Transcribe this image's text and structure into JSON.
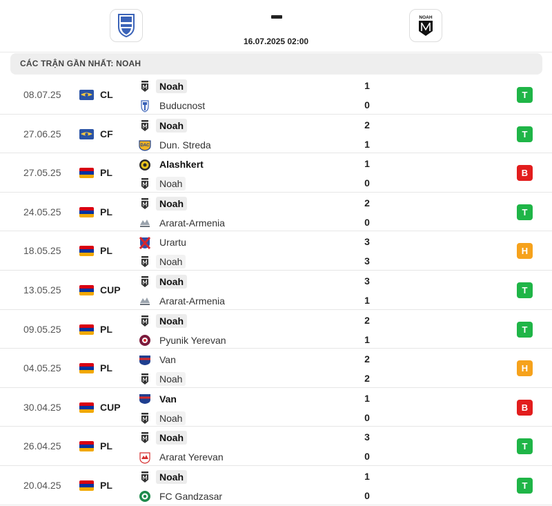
{
  "header": {
    "home_logo_icon": "buducnost-shield-icon",
    "away_logo_icon": "noah-crest-icon",
    "away_logo_text": "NOAH",
    "score": "-",
    "date": "16.07.2025 02:00"
  },
  "section_title": "CÁC TRẬN GẦN NHẤT: NOAH",
  "colors": {
    "win": "#1fb547",
    "loss": "#e21d1d",
    "draw": "#f6a21c"
  },
  "matches": [
    {
      "date": "08.07.25",
      "flag": "international",
      "comp": "CL",
      "home": {
        "name": "Noah",
        "bold": true,
        "noah": true,
        "logo": "noah-icon"
      },
      "away": {
        "name": "Buducnost",
        "bold": false,
        "noah": false,
        "logo": "buducnost-icon"
      },
      "home_score": "1",
      "away_score": "0",
      "result": "T"
    },
    {
      "date": "27.06.25",
      "flag": "international",
      "comp": "CF",
      "home": {
        "name": "Noah",
        "bold": true,
        "noah": true,
        "logo": "noah-icon"
      },
      "away": {
        "name": "Dun. Streda",
        "bold": false,
        "noah": false,
        "logo": "dunajska-streda-icon"
      },
      "home_score": "2",
      "away_score": "1",
      "result": "T"
    },
    {
      "date": "27.05.25",
      "flag": "armenia",
      "comp": "PL",
      "home": {
        "name": "Alashkert",
        "bold": true,
        "noah": false,
        "logo": "alashkert-icon"
      },
      "away": {
        "name": "Noah",
        "bold": false,
        "noah": true,
        "logo": "noah-icon"
      },
      "home_score": "1",
      "away_score": "0",
      "result": "B"
    },
    {
      "date": "24.05.25",
      "flag": "armenia",
      "comp": "PL",
      "home": {
        "name": "Noah",
        "bold": true,
        "noah": true,
        "logo": "noah-icon"
      },
      "away": {
        "name": "Ararat-Armenia",
        "bold": false,
        "noah": false,
        "logo": "ararat-armenia-icon"
      },
      "home_score": "2",
      "away_score": "0",
      "result": "T"
    },
    {
      "date": "18.05.25",
      "flag": "armenia",
      "comp": "PL",
      "home": {
        "name": "Urartu",
        "bold": false,
        "noah": false,
        "logo": "urartu-icon"
      },
      "away": {
        "name": "Noah",
        "bold": false,
        "noah": true,
        "logo": "noah-icon"
      },
      "home_score": "3",
      "away_score": "3",
      "result": "H"
    },
    {
      "date": "13.05.25",
      "flag": "armenia",
      "comp": "CUP",
      "home": {
        "name": "Noah",
        "bold": true,
        "noah": true,
        "logo": "noah-icon"
      },
      "away": {
        "name": "Ararat-Armenia",
        "bold": false,
        "noah": false,
        "logo": "ararat-armenia-icon"
      },
      "home_score": "3",
      "away_score": "1",
      "result": "T"
    },
    {
      "date": "09.05.25",
      "flag": "armenia",
      "comp": "PL",
      "home": {
        "name": "Noah",
        "bold": true,
        "noah": true,
        "logo": "noah-icon"
      },
      "away": {
        "name": "Pyunik Yerevan",
        "bold": false,
        "noah": false,
        "logo": "pyunik-icon"
      },
      "home_score": "2",
      "away_score": "1",
      "result": "T"
    },
    {
      "date": "04.05.25",
      "flag": "armenia",
      "comp": "PL",
      "home": {
        "name": "Van",
        "bold": false,
        "noah": false,
        "logo": "van-icon"
      },
      "away": {
        "name": "Noah",
        "bold": false,
        "noah": true,
        "logo": "noah-icon"
      },
      "home_score": "2",
      "away_score": "2",
      "result": "H"
    },
    {
      "date": "30.04.25",
      "flag": "armenia",
      "comp": "CUP",
      "home": {
        "name": "Van",
        "bold": true,
        "noah": false,
        "logo": "van-icon"
      },
      "away": {
        "name": "Noah",
        "bold": false,
        "noah": true,
        "logo": "noah-icon"
      },
      "home_score": "1",
      "away_score": "0",
      "result": "B"
    },
    {
      "date": "26.04.25",
      "flag": "armenia",
      "comp": "PL",
      "home": {
        "name": "Noah",
        "bold": true,
        "noah": true,
        "logo": "noah-icon"
      },
      "away": {
        "name": "Ararat Yerevan",
        "bold": false,
        "noah": false,
        "logo": "ararat-yerevan-icon"
      },
      "home_score": "3",
      "away_score": "0",
      "result": "T"
    },
    {
      "date": "20.04.25",
      "flag": "armenia",
      "comp": "PL",
      "home": {
        "name": "Noah",
        "bold": true,
        "noah": true,
        "logo": "noah-icon"
      },
      "away": {
        "name": "FC Gandzasar",
        "bold": false,
        "noah": false,
        "logo": "gandzasar-icon"
      },
      "home_score": "1",
      "away_score": "0",
      "result": "T"
    }
  ]
}
